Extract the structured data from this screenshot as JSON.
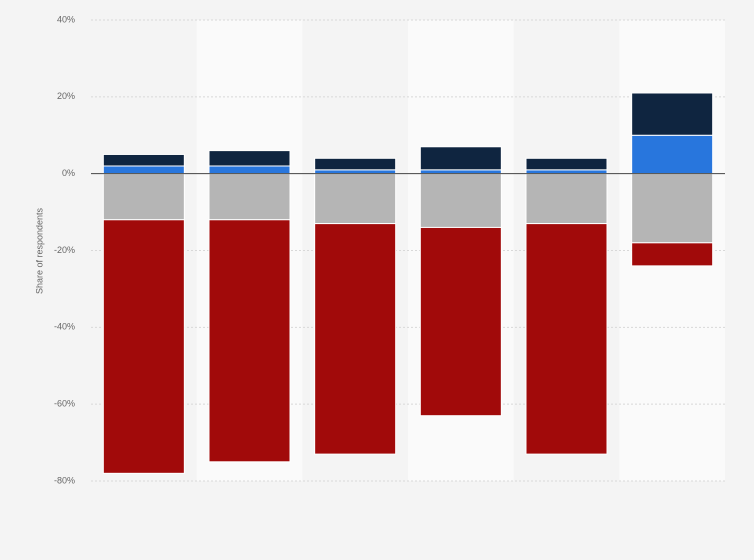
{
  "chart_data": {
    "type": "bar",
    "stacked": true,
    "y_label": "Share of respondents",
    "categories": [
      null,
      null,
      null,
      null,
      null,
      null
    ],
    "series": [
      {
        "color": "#2876dd",
        "values": [
          2,
          2,
          1,
          1,
          1,
          10
        ]
      },
      {
        "color": "#0f2540",
        "values": [
          3,
          4,
          3,
          6,
          3,
          11
        ]
      },
      {
        "color": "#b5b5b5",
        "values": [
          -12,
          -12,
          -13,
          -14,
          -13,
          -18
        ]
      },
      {
        "color": "#a10a0a",
        "values": [
          -66,
          -63,
          -60,
          -49,
          -60,
          -6
        ]
      }
    ],
    "ylim": [
      -80,
      40
    ],
    "yticks": [
      {
        "value": 40,
        "label": "40%"
      },
      {
        "value": 20,
        "label": "20%"
      },
      {
        "value": 0,
        "label": "0%"
      },
      {
        "value": -20,
        "label": "-20%"
      },
      {
        "value": -40,
        "label": "-40%"
      },
      {
        "value": -60,
        "label": "-60%"
      },
      {
        "value": -80,
        "label": "-80%"
      }
    ],
    "grid": true
  }
}
